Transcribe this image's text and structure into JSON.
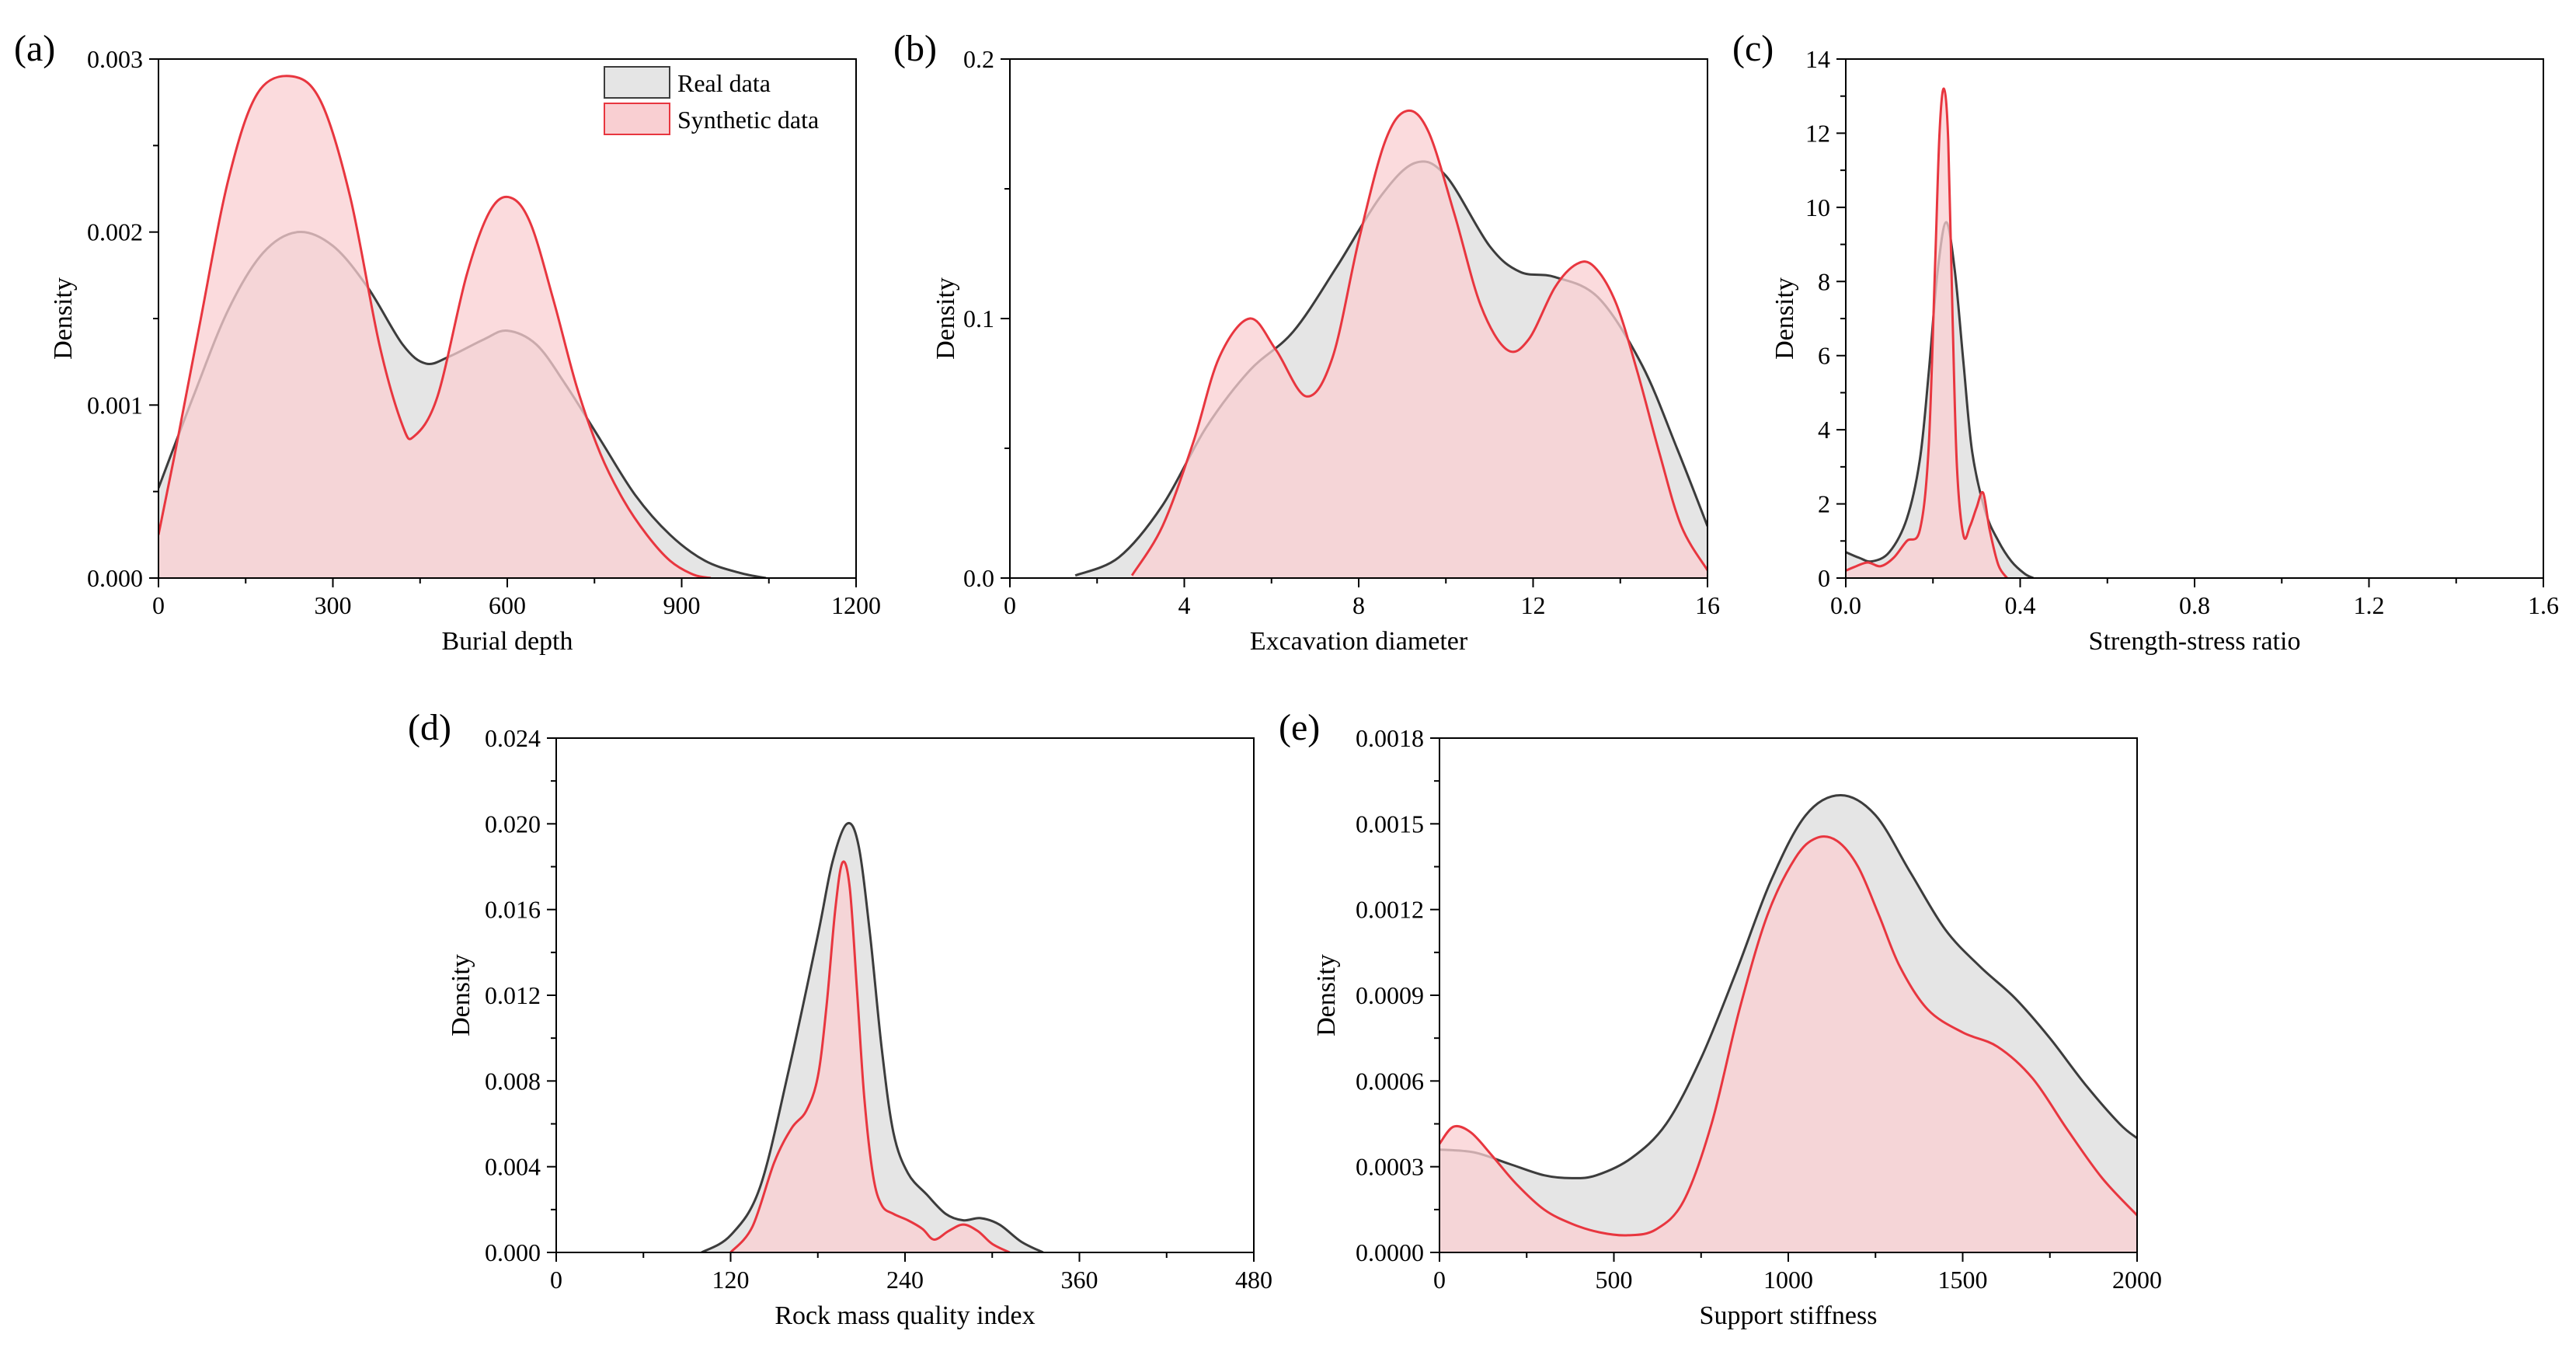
{
  "legend": {
    "real_label": "Real data",
    "synthetic_label": "Synthetic data"
  },
  "colors": {
    "real_line": "#3c3c3c",
    "real_fill": "#e5e5e5",
    "synthetic_line": "#e8363f",
    "synthetic_fill": "#f9cfd2",
    "synthetic_fill_opacity": 0.75
  },
  "chart_data": [
    {
      "panel": "(a)",
      "type": "area",
      "title": "",
      "xlabel": "Burial depth",
      "ylabel": "Density",
      "xlim": [
        0,
        1200
      ],
      "ylim": [
        0,
        0.003
      ],
      "xticks": [
        0,
        300,
        600,
        900,
        1200
      ],
      "xtick_labels": [
        "0",
        "300",
        "600",
        "900",
        "1200"
      ],
      "yticks": [
        0,
        0.001,
        0.002,
        0.003
      ],
      "ytick_labels": [
        "0.000",
        "0.001",
        "0.002",
        "0.003"
      ],
      "legend": "top-right",
      "series": [
        {
          "name": "Real data",
          "x": [
            0,
            60,
            120,
            180,
            240,
            300,
            360,
            420,
            460,
            500,
            560,
            600,
            650,
            700,
            760,
            820,
            880,
            940,
            1000,
            1045
          ],
          "y": [
            0.00052,
            0.00105,
            0.00155,
            0.00188,
            0.002,
            0.00192,
            0.00168,
            0.00135,
            0.00124,
            0.00128,
            0.00138,
            0.00143,
            0.00135,
            0.00112,
            0.0008,
            0.00048,
            0.00025,
            0.0001,
            3e-05,
            0
          ]
        },
        {
          "name": "Synthetic data",
          "x": [
            0,
            30,
            70,
            120,
            170,
            230,
            280,
            330,
            380,
            420,
            440,
            480,
            530,
            570,
            605,
            640,
            680,
            720,
            760,
            800,
            840,
            880,
            920,
            950
          ],
          "y": [
            0.00025,
            0.00075,
            0.00145,
            0.0023,
            0.0028,
            0.0029,
            0.00275,
            0.0022,
            0.00135,
            0.00088,
            0.00082,
            0.00105,
            0.00175,
            0.00212,
            0.0022,
            0.00205,
            0.0016,
            0.0011,
            0.00072,
            0.00045,
            0.00025,
            0.0001,
            2e-05,
            0
          ]
        }
      ]
    },
    {
      "panel": "(b)",
      "type": "area",
      "title": "",
      "xlabel": "Excavation diameter",
      "ylabel": "Density",
      "xlim": [
        0,
        16
      ],
      "ylim": [
        0,
        0.2
      ],
      "xticks": [
        0,
        4,
        8,
        12,
        16
      ],
      "xtick_labels": [
        "0",
        "4",
        "8",
        "12",
        "16"
      ],
      "yticks": [
        0,
        0.1,
        0.2
      ],
      "ytick_labels": [
        "0.0",
        "0.1",
        "0.2"
      ],
      "legend": "none",
      "series": [
        {
          "name": "Real data",
          "x": [
            1.5,
            2.5,
            3.5,
            4.5,
            5.5,
            6.5,
            7.5,
            8.5,
            9.3,
            10,
            11,
            11.7,
            12.5,
            13.5,
            14.5,
            15.3,
            16
          ],
          "y": [
            0.001,
            0.008,
            0.028,
            0.058,
            0.08,
            0.095,
            0.12,
            0.147,
            0.16,
            0.155,
            0.128,
            0.118,
            0.116,
            0.108,
            0.082,
            0.05,
            0.02
          ]
        },
        {
          "name": "Synthetic data",
          "x": [
            2.8,
            3.5,
            4.2,
            4.8,
            5.5,
            6.1,
            6.8,
            7.4,
            8.0,
            8.6,
            9.1,
            9.6,
            10.2,
            10.8,
            11.4,
            11.9,
            12.5,
            13.0,
            13.4,
            13.9,
            14.4,
            14.9,
            15.4,
            16
          ],
          "y": [
            0.001,
            0.02,
            0.052,
            0.085,
            0.1,
            0.088,
            0.07,
            0.085,
            0.13,
            0.168,
            0.18,
            0.172,
            0.14,
            0.105,
            0.088,
            0.092,
            0.112,
            0.121,
            0.12,
            0.106,
            0.079,
            0.048,
            0.02,
            0.003
          ]
        }
      ]
    },
    {
      "panel": "(c)",
      "type": "area",
      "title": "",
      "xlabel": "Strength-stress ratio",
      "ylabel": "Density",
      "xlim": [
        0,
        1.6
      ],
      "ylim": [
        0,
        14
      ],
      "xticks": [
        0,
        0.4,
        0.8,
        1.2,
        1.6
      ],
      "xtick_labels": [
        "0.0",
        "0.4",
        "0.8",
        "1.2",
        "1.6"
      ],
      "yticks": [
        0,
        2,
        4,
        6,
        8,
        10,
        12,
        14
      ],
      "ytick_labels": [
        "0",
        "2",
        "4",
        "6",
        "8",
        "10",
        "12",
        "14"
      ],
      "legend": "none",
      "series": [
        {
          "name": "Real data",
          "x": [
            0,
            0.03,
            0.06,
            0.1,
            0.14,
            0.17,
            0.19,
            0.21,
            0.23,
            0.25,
            0.27,
            0.29,
            0.32,
            0.35,
            0.38,
            0.41,
            0.43
          ],
          "y": [
            0.7,
            0.55,
            0.45,
            0.7,
            1.6,
            3.2,
            5.5,
            8.2,
            9.6,
            8.3,
            5.8,
            3.4,
            1.8,
            1.0,
            0.45,
            0.12,
            0
          ]
        },
        {
          "name": "Synthetic data",
          "x": [
            0,
            0.02,
            0.05,
            0.08,
            0.11,
            0.14,
            0.17,
            0.19,
            0.205,
            0.215,
            0.225,
            0.235,
            0.245,
            0.255,
            0.27,
            0.285,
            0.3,
            0.315,
            0.33,
            0.35,
            0.37
          ],
          "y": [
            0.2,
            0.3,
            0.42,
            0.32,
            0.55,
            1.0,
            1.3,
            3.5,
            8.5,
            12.0,
            13.2,
            11.8,
            7.0,
            3.0,
            1.15,
            1.4,
            1.9,
            2.3,
            1.3,
            0.35,
            0
          ]
        }
      ]
    },
    {
      "panel": "(d)",
      "type": "area",
      "title": "",
      "xlabel": "Rock mass quality index",
      "ylabel": "Density",
      "xlim": [
        0,
        480
      ],
      "ylim": [
        0,
        0.024
      ],
      "xticks": [
        0,
        120,
        240,
        360,
        480
      ],
      "xtick_labels": [
        "0",
        "120",
        "240",
        "360",
        "480"
      ],
      "yticks": [
        0,
        0.004,
        0.008,
        0.012,
        0.016,
        0.02,
        0.024
      ],
      "ytick_labels": [
        "0.000",
        "0.004",
        "0.008",
        "0.012",
        "0.016",
        "0.020",
        "0.024"
      ],
      "legend": "none",
      "series": [
        {
          "name": "Real data",
          "x": [
            100,
            120,
            140,
            160,
            180,
            190,
            200,
            208,
            216,
            224,
            232,
            242,
            255,
            268,
            280,
            292,
            305,
            320,
            335
          ],
          "y": [
            0,
            0.0008,
            0.003,
            0.0085,
            0.0148,
            0.0182,
            0.02,
            0.019,
            0.0148,
            0.0095,
            0.0056,
            0.0037,
            0.0027,
            0.0018,
            0.0015,
            0.0016,
            0.0013,
            0.0005,
            0
          ]
        },
        {
          "name": "Synthetic data",
          "x": [
            120,
            135,
            150,
            162,
            172,
            180,
            186,
            192,
            197,
            202,
            207,
            212,
            218,
            224,
            232,
            242,
            252,
            260,
            270,
            280,
            290,
            300,
            312
          ],
          "y": [
            0,
            0.0012,
            0.0042,
            0.0058,
            0.0066,
            0.0082,
            0.0115,
            0.016,
            0.0182,
            0.017,
            0.0122,
            0.0072,
            0.0036,
            0.0022,
            0.0018,
            0.0015,
            0.0011,
            0.0006,
            0.001,
            0.0013,
            0.001,
            0.0004,
            0
          ]
        }
      ]
    },
    {
      "panel": "(e)",
      "type": "area",
      "title": "",
      "xlabel": "Support stiffness",
      "ylabel": "Density",
      "xlim": [
        0,
        2000
      ],
      "ylim": [
        0,
        0.0018
      ],
      "xticks": [
        0,
        500,
        1000,
        1500,
        2000
      ],
      "xtick_labels": [
        "0",
        "500",
        "1000",
        "1500",
        "2000"
      ],
      "yticks": [
        0,
        0.0003,
        0.0006,
        0.0009,
        0.0012,
        0.0015,
        0.0018
      ],
      "ytick_labels": [
        "0.0000",
        "0.0003",
        "0.0006",
        "0.0009",
        "0.0012",
        "0.0015",
        "0.0018"
      ],
      "legend": "none",
      "series": [
        {
          "name": "Real data",
          "x": [
            0,
            100,
            200,
            300,
            380,
            450,
            550,
            650,
            750,
            850,
            950,
            1050,
            1150,
            1250,
            1350,
            1450,
            1550,
            1650,
            1750,
            1850,
            1950,
            2000
          ],
          "y": [
            0.00036,
            0.00035,
            0.00031,
            0.00027,
            0.00026,
            0.00027,
            0.00033,
            0.00045,
            0.00068,
            0.00098,
            0.0013,
            0.00153,
            0.0016,
            0.00153,
            0.00133,
            0.00113,
            0.001,
            0.00089,
            0.00075,
            0.00059,
            0.00045,
            0.0004
          ]
        },
        {
          "name": "Synthetic data",
          "x": [
            0,
            40,
            90,
            150,
            220,
            300,
            380,
            460,
            540,
            620,
            700,
            780,
            860,
            940,
            1020,
            1080,
            1140,
            1200,
            1260,
            1320,
            1400,
            1500,
            1600,
            1700,
            1800,
            1900,
            2000
          ],
          "y": [
            0.00038,
            0.00044,
            0.00042,
            0.00034,
            0.00024,
            0.00015,
            0.0001,
            7e-05,
            6e-05,
            8e-05,
            0.00018,
            0.00045,
            0.00085,
            0.00118,
            0.00138,
            0.00145,
            0.00144,
            0.00135,
            0.00118,
            0.001,
            0.00085,
            0.00077,
            0.00072,
            0.00061,
            0.00043,
            0.00026,
            0.00013
          ]
        }
      ]
    }
  ]
}
